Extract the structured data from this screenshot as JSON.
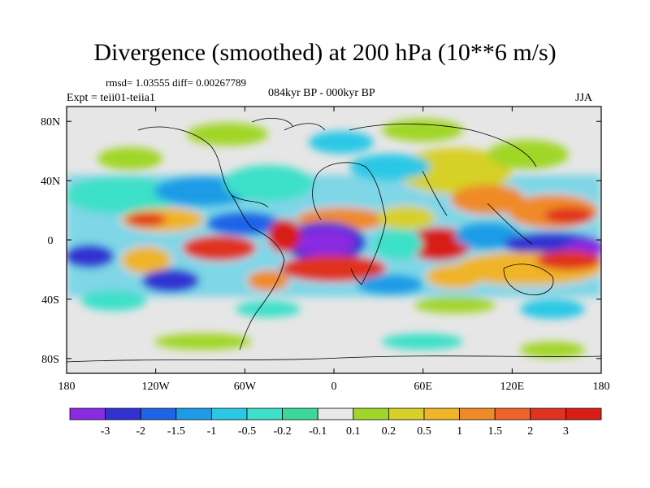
{
  "title": "Divergence (smoothed) at 200 hPa (10**6 m/s)",
  "stats": "rmsd= 1.03555 diff= 0.00267789",
  "experiment": "Expt = teii01-teiia1",
  "period": "084kyr BP - 000kyr BP",
  "season": "JJA",
  "axes": {
    "lon_ticks": [
      "180",
      "120W",
      "60W",
      "0",
      "60E",
      "120E",
      "180"
    ],
    "lat_ticks": [
      "80N",
      "40N",
      "0",
      "40S",
      "80S"
    ]
  },
  "colorbar": {
    "labels": [
      "-3",
      "-2",
      "-1.5",
      "-1",
      "-0.5",
      "-0.2",
      "-0.1",
      "0.1",
      "0.2",
      "0.5",
      "1",
      "1.5",
      "2",
      "3"
    ],
    "colors": [
      "#8a2be2",
      "#3232d2",
      "#1e64e6",
      "#1e9be6",
      "#2bc8e6",
      "#3de0c8",
      "#3cd79b",
      "#e8e8e8",
      "#a0d628",
      "#d7d028",
      "#f0b428",
      "#f08a28",
      "#ee6428",
      "#e0321e",
      "#d81e14"
    ]
  }
}
